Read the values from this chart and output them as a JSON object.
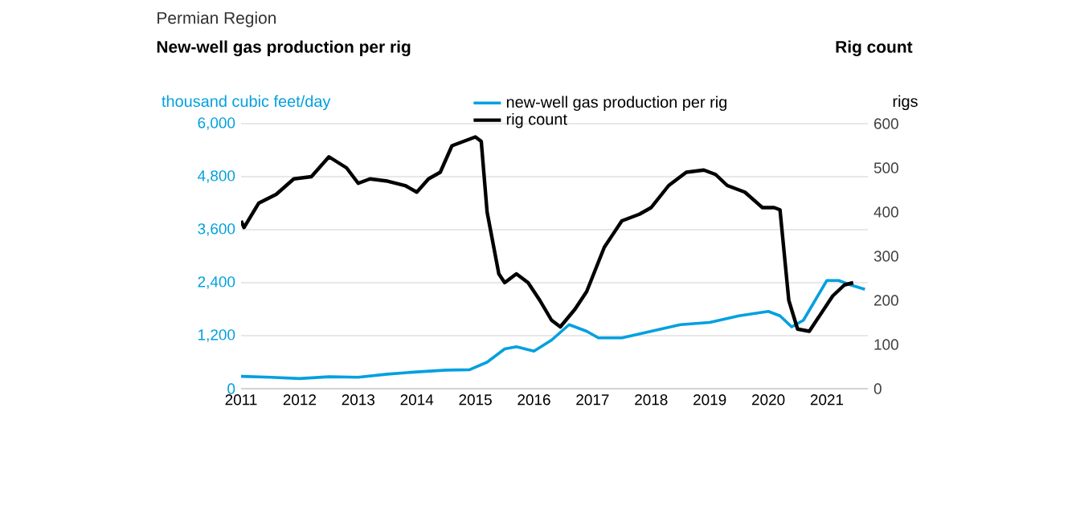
{
  "chart_data": {
    "type": "line",
    "title": "Permian Region",
    "subtitle": "New-well gas production per rig",
    "ylabel": "thousand cubic feet/day",
    "y2label": "rigs",
    "annotations": [
      "Rig count"
    ],
    "xlim": [
      2011,
      2021.7
    ],
    "xticks": [
      2011,
      2012,
      2013,
      2014,
      2015,
      2016,
      2017,
      2018,
      2019,
      2020,
      2021
    ],
    "ylim": [
      0,
      6000
    ],
    "yticks": [
      0,
      {
        "value": 1200,
        "label": "1,200"
      },
      {
        "value": 2400,
        "label": "2,400"
      },
      {
        "value": 3600,
        "label": "3,600"
      },
      {
        "value": 4800,
        "label": "4,800"
      },
      {
        "value": 6000,
        "label": "6,000"
      }
    ],
    "y2lim": [
      0,
      600
    ],
    "y2ticks": [
      0,
      100,
      200,
      300,
      400,
      500,
      600
    ],
    "grid": "y",
    "legend": "top",
    "line_style": "solid",
    "marker": "none",
    "series": [
      {
        "name": "new-well gas production per rig",
        "color": "#00a0e0",
        "axis": "y",
        "x": [
          2011.0,
          2011.5,
          2012.0,
          2012.5,
          2013.0,
          2013.5,
          2014.0,
          2014.5,
          2014.9,
          2015.2,
          2015.5,
          2015.7,
          2016.0,
          2016.3,
          2016.6,
          2016.9,
          2017.1,
          2017.5,
          2018.0,
          2018.5,
          2019.0,
          2019.5,
          2020.0,
          2020.2,
          2020.4,
          2020.6,
          2020.8,
          2021.0,
          2021.2,
          2021.4,
          2021.65
        ],
        "values": [
          280,
          260,
          230,
          270,
          260,
          330,
          380,
          420,
          430,
          600,
          900,
          950,
          850,
          1100,
          1450,
          1300,
          1150,
          1150,
          1300,
          1450,
          1500,
          1650,
          1750,
          1650,
          1400,
          1550,
          2000,
          2450,
          2450,
          2350,
          2250
        ]
      },
      {
        "name": "rig count",
        "color": "#000000",
        "axis": "y2",
        "x": [
          2011.0,
          2011.05,
          2011.3,
          2011.6,
          2011.9,
          2012.2,
          2012.5,
          2012.8,
          2013.0,
          2013.2,
          2013.5,
          2013.8,
          2014.0,
          2014.2,
          2014.4,
          2014.6,
          2014.9,
          2015.0,
          2015.1,
          2015.2,
          2015.4,
          2015.5,
          2015.7,
          2015.9,
          2016.1,
          2016.3,
          2016.45,
          2016.7,
          2016.9,
          2017.2,
          2017.5,
          2017.8,
          2018.0,
          2018.3,
          2018.6,
          2018.9,
          2019.1,
          2019.3,
          2019.6,
          2019.9,
          2020.1,
          2020.2,
          2020.35,
          2020.5,
          2020.7,
          2020.9,
          2021.1,
          2021.3,
          2021.45
        ],
        "values": [
          380,
          365,
          420,
          440,
          475,
          480,
          525,
          500,
          465,
          475,
          470,
          460,
          445,
          475,
          490,
          550,
          565,
          570,
          560,
          400,
          260,
          240,
          260,
          240,
          200,
          155,
          140,
          180,
          220,
          320,
          380,
          395,
          410,
          460,
          490,
          495,
          485,
          460,
          445,
          410,
          410,
          405,
          200,
          135,
          130,
          170,
          210,
          235,
          240
        ]
      }
    ]
  }
}
